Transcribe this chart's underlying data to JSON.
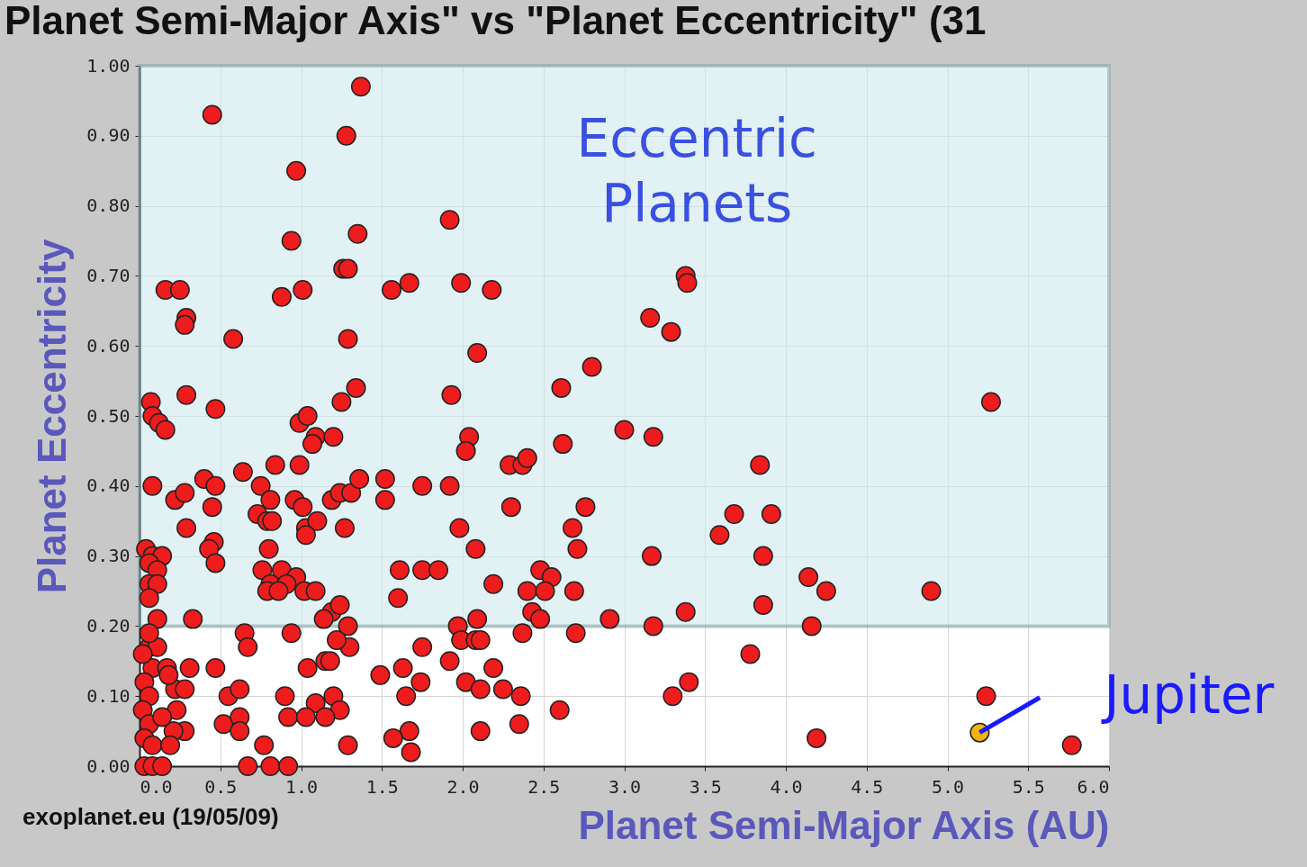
{
  "chart_data": {
    "type": "scatter",
    "title": "Planet Semi-Major Axis\"  vs \"Planet Eccentricity\" (31",
    "xlabel": "Planet Semi-Major Axis (AU)",
    "ylabel": "Planet Eccentricity",
    "xlim": [
      0,
      6
    ],
    "ylim": [
      0,
      1
    ],
    "xticks": [
      {
        "value": 0,
        "label": "0.0"
      },
      {
        "value": 0.5,
        "label": "0.5"
      },
      {
        "value": 1,
        "label": "1.0"
      },
      {
        "value": 1.5,
        "label": "1.5"
      },
      {
        "value": 2,
        "label": "2.0"
      },
      {
        "value": 2.5,
        "label": "2.5"
      },
      {
        "value": 3,
        "label": "3.0"
      },
      {
        "value": 3.5,
        "label": "3.5"
      },
      {
        "value": 4,
        "label": "4.0"
      },
      {
        "value": 4.5,
        "label": "4.5"
      },
      {
        "value": 5,
        "label": "5.0"
      },
      {
        "value": 5.5,
        "label": "5.5"
      },
      {
        "value": 6,
        "label": "6.0"
      }
    ],
    "yticks": [
      {
        "value": 0,
        "label": "0.00"
      },
      {
        "value": 0.1,
        "label": "0.10"
      },
      {
        "value": 0.2,
        "label": "0.20"
      },
      {
        "value": 0.3,
        "label": "0.30"
      },
      {
        "value": 0.4,
        "label": "0.40"
      },
      {
        "value": 0.5,
        "label": "0.50"
      },
      {
        "value": 0.6,
        "label": "0.60"
      },
      {
        "value": 0.7,
        "label": "0.70"
      },
      {
        "value": 0.8,
        "label": "0.80"
      },
      {
        "value": 0.9,
        "label": "0.90"
      },
      {
        "value": 1,
        "label": "1.00"
      }
    ],
    "grid": true,
    "marker": "circle",
    "bands": [
      {
        "axis": "y",
        "from": 0.2,
        "to": 1.0,
        "label": "Eccentric Planets",
        "color": "#cfe9ec"
      }
    ],
    "series": [
      {
        "color": "#ee1c1c",
        "x": [
          1.37,
          0.45,
          1.28,
          0.97,
          1.92,
          0.94,
          1.35,
          1.26,
          1.29,
          0.16,
          0.25,
          0.88,
          1.01,
          1.56,
          1.67,
          1.99,
          2.18,
          3.38,
          3.39,
          0.29,
          0.28,
          3.16,
          3.29,
          0.58,
          1.29,
          2.09,
          2.8,
          0.07,
          0.29,
          1.34,
          1.25,
          1.93,
          2.61,
          5.27,
          0.08,
          0.12,
          0.16,
          0.47,
          0.99,
          1.04,
          1.09,
          1.07,
          1.2,
          2.04,
          2.02,
          2.62,
          3.0,
          3.18,
          2.29,
          2.37,
          2.4,
          3.84,
          0.64,
          0.84,
          0.99,
          0.4,
          0.47,
          0.08,
          0.22,
          0.28,
          0.45,
          0.75,
          0.81,
          0.96,
          1.01,
          1.19,
          1.24,
          1.31,
          1.36,
          1.52,
          1.52,
          1.75,
          1.92,
          2.3,
          2.76,
          0.73,
          0.79,
          0.82,
          1.03,
          1.1,
          1.03,
          0.29,
          1.27,
          1.98,
          3.68,
          3.91,
          3.59,
          2.68,
          2.71,
          0.46,
          0.43,
          0.47,
          0.8,
          2.08,
          3.17,
          3.86,
          0.04,
          0.08,
          0.14,
          0.06,
          0.11,
          0.06,
          0.11,
          0.06,
          0.76,
          0.88,
          0.97,
          0.81,
          0.91,
          1.02,
          1.09,
          0.79,
          0.86,
          1.61,
          1.75,
          1.85,
          1.6,
          2.19,
          2.48,
          2.55,
          2.4,
          2.51,
          2.69,
          2.43,
          2.48,
          4.14,
          4.25,
          4.9,
          3.86,
          3.38,
          2.91,
          1.19,
          1.24,
          1.14,
          0.33,
          0.11,
          1.97,
          2.09,
          4.16,
          3.18,
          0.65,
          0.67,
          0.94,
          1.29,
          1.3,
          1.22,
          1.75,
          1.99,
          2.08,
          2.11,
          2.37,
          2.7,
          3.78,
          1.92,
          0.47,
          1.04,
          1.15,
          1.18,
          1.49,
          1.63,
          1.74,
          2.19,
          2.02,
          2.11,
          2.25,
          2.36,
          3.4,
          3.3,
          5.24,
          0.55,
          0.62,
          0.9,
          1.09,
          1.2,
          1.24,
          1.15,
          1.65,
          2.6,
          0.23,
          0.28,
          0.21,
          0.52,
          0.62,
          0.62,
          0.92,
          1.03,
          2.11,
          2.35,
          1.67,
          1.57,
          1.68,
          1.29,
          0.77,
          4.19,
          5.77,
          0.67,
          0.81,
          0.92,
          0.03,
          0.08,
          0.14,
          0.06,
          0.08,
          0.03,
          0.06,
          0.02,
          0.06,
          0.03,
          0.08,
          0.17,
          0.22,
          0.31,
          0.28,
          0.18,
          0.14,
          0.19,
          0.11,
          0.06,
          0.02
        ],
        "values": [
          0.97,
          0.93,
          0.9,
          0.85,
          0.78,
          0.75,
          0.76,
          0.71,
          0.71,
          0.68,
          0.68,
          0.67,
          0.68,
          0.68,
          0.69,
          0.69,
          0.68,
          0.7,
          0.69,
          0.64,
          0.63,
          0.64,
          0.62,
          0.61,
          0.61,
          0.59,
          0.57,
          0.52,
          0.53,
          0.54,
          0.52,
          0.53,
          0.54,
          0.52,
          0.5,
          0.49,
          0.48,
          0.51,
          0.49,
          0.5,
          0.47,
          0.46,
          0.47,
          0.47,
          0.45,
          0.46,
          0.48,
          0.47,
          0.43,
          0.43,
          0.44,
          0.43,
          0.42,
          0.43,
          0.43,
          0.41,
          0.4,
          0.4,
          0.38,
          0.39,
          0.37,
          0.4,
          0.38,
          0.38,
          0.37,
          0.38,
          0.39,
          0.39,
          0.41,
          0.41,
          0.38,
          0.4,
          0.4,
          0.37,
          0.37,
          0.36,
          0.35,
          0.35,
          0.34,
          0.35,
          0.33,
          0.34,
          0.34,
          0.34,
          0.36,
          0.36,
          0.33,
          0.34,
          0.31,
          0.32,
          0.31,
          0.29,
          0.31,
          0.31,
          0.3,
          0.3,
          0.31,
          0.3,
          0.3,
          0.29,
          0.28,
          0.26,
          0.26,
          0.24,
          0.28,
          0.28,
          0.27,
          0.26,
          0.26,
          0.25,
          0.25,
          0.25,
          0.25,
          0.28,
          0.28,
          0.28,
          0.24,
          0.26,
          0.28,
          0.27,
          0.25,
          0.25,
          0.25,
          0.22,
          0.21,
          0.27,
          0.25,
          0.25,
          0.23,
          0.22,
          0.21,
          0.22,
          0.23,
          0.21,
          0.21,
          0.21,
          0.2,
          0.21,
          0.2,
          0.2,
          0.19,
          0.17,
          0.19,
          0.2,
          0.17,
          0.18,
          0.17,
          0.18,
          0.18,
          0.18,
          0.19,
          0.19,
          0.16,
          0.15,
          0.14,
          0.14,
          0.15,
          0.15,
          0.13,
          0.14,
          0.12,
          0.14,
          0.12,
          0.11,
          0.11,
          0.1,
          0.12,
          0.1,
          0.1,
          0.1,
          0.11,
          0.1,
          0.09,
          0.1,
          0.08,
          0.07,
          0.1,
          0.08,
          0.08,
          0.05,
          0.05,
          0.06,
          0.07,
          0.05,
          0.07,
          0.07,
          0.05,
          0.06,
          0.05,
          0.04,
          0.02,
          0.03,
          0.03,
          0.04,
          0.03,
          0.0,
          0.0,
          0.0,
          0.0,
          0.0,
          0.0,
          0.17,
          0.14,
          0.12,
          0.1,
          0.08,
          0.06,
          0.04,
          0.03,
          0.14,
          0.11,
          0.14,
          0.11,
          0.13,
          0.07,
          0.03,
          0.17,
          0.19,
          0.16
        ]
      },
      {
        "color": "#f2b40c",
        "x": [
          5.2
        ],
        "values": [
          0.048
        ]
      }
    ],
    "annotations": [
      {
        "text": "Jupiter",
        "x": 5.2,
        "y": 0.048
      },
      "exoplanet.eu (19/05/09)"
    ]
  }
}
